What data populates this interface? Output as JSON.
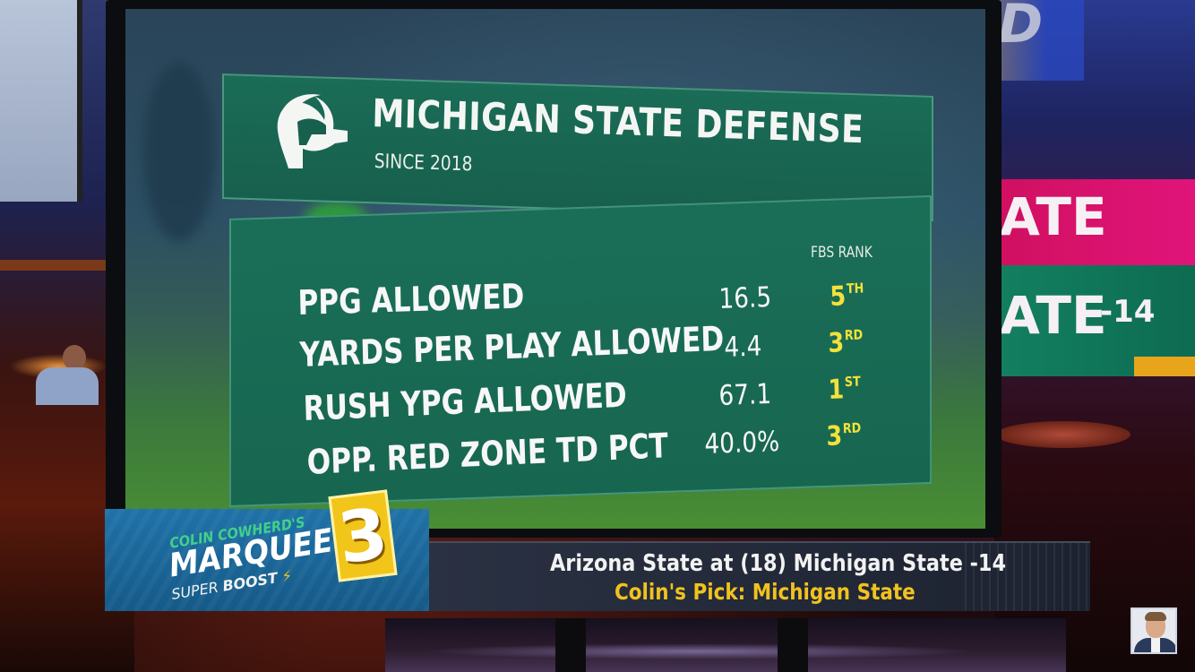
{
  "graphic": {
    "title": "MICHIGAN STATE DEFENSE",
    "subtitle": "SINCE 2018",
    "rank_header": "FBS RANK",
    "stats": [
      {
        "label": "PPG ALLOWED",
        "value": "16.5",
        "rank": "5",
        "rank_suffix": "TH"
      },
      {
        "label": "YARDS PER PLAY ALLOWED",
        "value": "4.4",
        "rank": "3",
        "rank_suffix": "RD"
      },
      {
        "label": "RUSH YPG ALLOWED",
        "value": "67.1",
        "rank": "1",
        "rank_suffix": "ST"
      },
      {
        "label": "OPP. RED ZONE TD PCT",
        "value": "40.0%",
        "rank": "3",
        "rank_suffix": "RD"
      }
    ]
  },
  "lower_third": {
    "segment_host": "COLIN COWHERD'S",
    "segment_title": "MARQUEE",
    "segment_sub_1": "SUPER",
    "segment_sub_2": "BOOST",
    "segment_number": "3",
    "matchup": "Arizona State at (18) Michigan State -14",
    "pick": "Colin's Pick: Michigan State"
  },
  "background": {
    "side_board_line1": "ATE",
    "side_board_line2": "ATE",
    "side_board_spread": "-14"
  },
  "colors": {
    "msu_green": "#17604d",
    "rank_yellow": "#f2e23a",
    "marquee_blue": "#1f72a8",
    "pick_gold": "#f1c21f"
  },
  "icons": [
    "spartan-helmet-icon",
    "lightning-bolt-icon"
  ]
}
